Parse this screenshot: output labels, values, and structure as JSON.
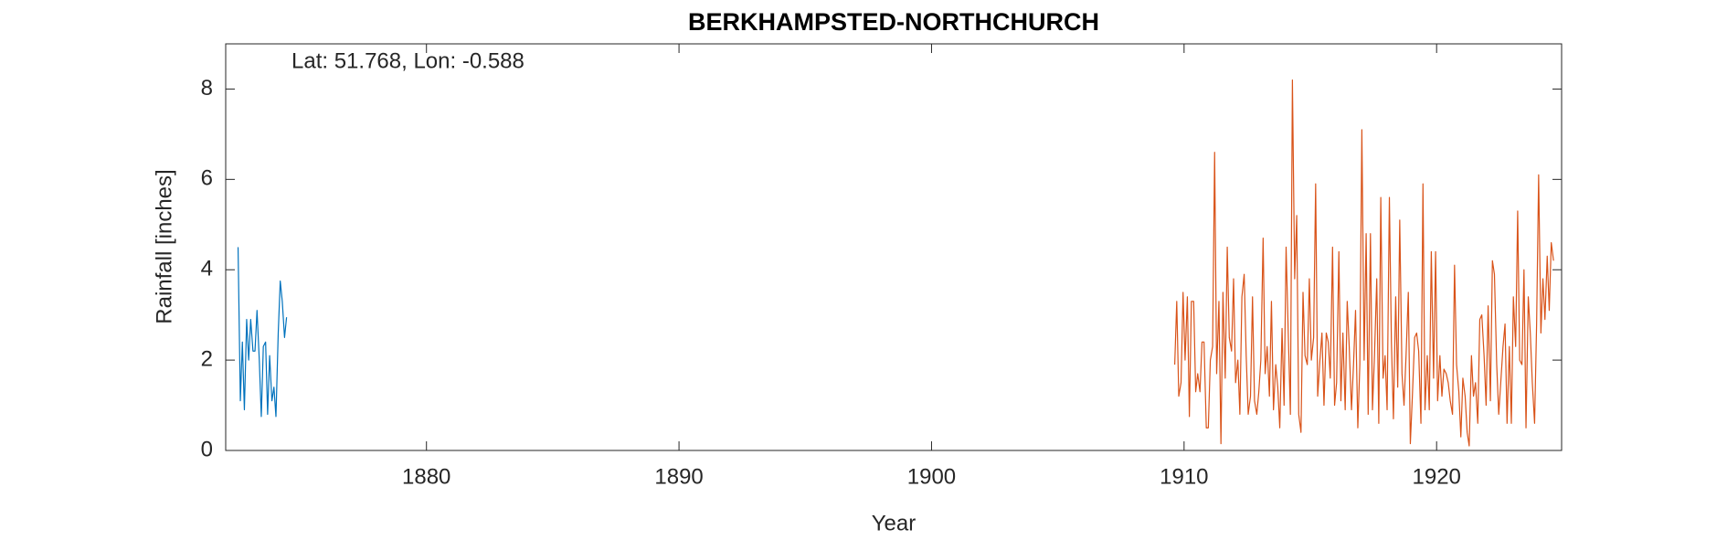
{
  "chart_data": {
    "type": "line",
    "title": "BERKHAMPSTED-NORTHCHURCH",
    "annotation": "Lat: 51.768, Lon: -0.588",
    "x_label": "Year",
    "y_label": "Rainfall [inches]",
    "xlim": [
      1872.05,
      1924.95
    ],
    "ylim": [
      0,
      9
    ],
    "xticks": [
      1880,
      1890,
      1900,
      1910,
      1920
    ],
    "yticks": [
      0,
      2,
      4,
      6,
      8
    ],
    "grid": false,
    "series": [
      {
        "color": "#0072bd",
        "x": [
          1872.54,
          1872.63,
          1872.71,
          1872.79,
          1872.88,
          1872.96,
          1873.04,
          1873.13,
          1873.21,
          1873.29,
          1873.38,
          1873.46,
          1873.54,
          1873.63,
          1873.71,
          1873.79,
          1873.88,
          1873.96,
          1874.04,
          1874.13,
          1874.21,
          1874.29,
          1874.38,
          1874.46
        ],
        "values": [
          4.5,
          1.1,
          2.4,
          0.9,
          2.9,
          2.0,
          2.9,
          2.2,
          2.2,
          3.1,
          2.0,
          0.75,
          2.3,
          2.4,
          0.8,
          2.1,
          1.1,
          1.4,
          0.75,
          2.6,
          3.75,
          3.3,
          2.5,
          2.95
        ]
      },
      {
        "color": "#d95319",
        "x": [
          1909.63,
          1909.71,
          1909.79,
          1909.88,
          1909.96,
          1910.04,
          1910.13,
          1910.21,
          1910.29,
          1910.38,
          1910.46,
          1910.54,
          1910.63,
          1910.71,
          1910.79,
          1910.88,
          1910.96,
          1911.04,
          1911.13,
          1911.21,
          1911.29,
          1911.38,
          1911.46,
          1911.54,
          1911.63,
          1911.71,
          1911.79,
          1911.88,
          1911.96,
          1912.04,
          1912.13,
          1912.21,
          1912.29,
          1912.38,
          1912.46,
          1912.54,
          1912.63,
          1912.71,
          1912.79,
          1912.88,
          1912.96,
          1913.04,
          1913.13,
          1913.21,
          1913.29,
          1913.38,
          1913.46,
          1913.54,
          1913.63,
          1913.71,
          1913.79,
          1913.88,
          1913.96,
          1914.04,
          1914.13,
          1914.21,
          1914.29,
          1914.38,
          1914.46,
          1914.54,
          1914.63,
          1914.71,
          1914.79,
          1914.88,
          1914.96,
          1915.04,
          1915.13,
          1915.21,
          1915.29,
          1915.38,
          1915.46,
          1915.54,
          1915.63,
          1915.71,
          1915.79,
          1915.88,
          1915.96,
          1916.04,
          1916.13,
          1916.21,
          1916.29,
          1916.38,
          1916.46,
          1916.54,
          1916.63,
          1916.71,
          1916.79,
          1916.88,
          1916.96,
          1917.04,
          1917.13,
          1917.21,
          1917.29,
          1917.38,
          1917.46,
          1917.54,
          1917.63,
          1917.71,
          1917.79,
          1917.88,
          1917.96,
          1918.04,
          1918.13,
          1918.21,
          1918.29,
          1918.38,
          1918.46,
          1918.54,
          1918.63,
          1918.71,
          1918.79,
          1918.88,
          1918.96,
          1919.04,
          1919.13,
          1919.21,
          1919.29,
          1919.38,
          1919.46,
          1919.54,
          1919.63,
          1919.71,
          1919.79,
          1919.88,
          1919.96,
          1920.04,
          1920.13,
          1920.21,
          1920.29,
          1920.38,
          1920.46,
          1920.54,
          1920.63,
          1920.71,
          1920.79,
          1920.88,
          1920.96,
          1921.04,
          1921.13,
          1921.21,
          1921.29,
          1921.38,
          1921.46,
          1921.54,
          1921.63,
          1921.71,
          1921.79,
          1921.88,
          1921.96,
          1922.04,
          1922.13,
          1922.21,
          1922.29,
          1922.38,
          1922.46,
          1922.54,
          1922.63,
          1922.71,
          1922.79,
          1922.88,
          1922.96,
          1923.04,
          1923.13,
          1923.21,
          1923.29,
          1923.38,
          1923.46,
          1923.54,
          1923.63,
          1923.71,
          1923.79,
          1923.88,
          1923.96,
          1924.04,
          1924.13,
          1924.21,
          1924.29,
          1924.38,
          1924.46,
          1924.54,
          1924.63
        ],
        "values": [
          1.9,
          3.3,
          1.2,
          1.5,
          3.5,
          2.0,
          3.4,
          0.75,
          3.3,
          3.3,
          1.3,
          1.7,
          1.3,
          2.4,
          2.4,
          0.5,
          0.5,
          2.0,
          2.3,
          6.6,
          1.7,
          3.3,
          0.15,
          3.5,
          1.6,
          4.5,
          2.5,
          2.2,
          3.8,
          1.5,
          2.0,
          0.8,
          3.4,
          3.9,
          2.1,
          0.8,
          1.2,
          3.4,
          1.1,
          0.8,
          1.3,
          2.0,
          4.7,
          1.7,
          2.3,
          1.2,
          3.3,
          0.9,
          1.9,
          1.4,
          0.5,
          2.7,
          1.0,
          4.5,
          2.5,
          0.8,
          8.2,
          3.8,
          5.2,
          0.8,
          0.4,
          3.5,
          2.1,
          1.9,
          3.8,
          2.0,
          2.5,
          5.9,
          1.2,
          2.0,
          2.6,
          1.0,
          2.6,
          2.4,
          1.6,
          4.5,
          1.0,
          1.5,
          4.4,
          1.1,
          2.6,
          0.9,
          3.3,
          2.3,
          0.9,
          1.9,
          3.1,
          0.5,
          1.9,
          7.1,
          2.0,
          4.8,
          0.8,
          4.8,
          0.9,
          2.1,
          3.8,
          0.6,
          5.6,
          1.6,
          2.1,
          0.9,
          5.6,
          2.4,
          0.7,
          3.4,
          1.4,
          5.1,
          1.7,
          1.0,
          2.1,
          3.5,
          0.15,
          1.2,
          2.5,
          2.6,
          2.2,
          0.6,
          5.9,
          0.9,
          2.1,
          0.9,
          4.4,
          1.6,
          4.4,
          1.1,
          2.1,
          1.2,
          1.8,
          1.7,
          1.5,
          1.1,
          0.8,
          4.1,
          1.9,
          1.3,
          0.3,
          1.6,
          1.2,
          0.4,
          0.1,
          2.1,
          1.2,
          1.5,
          0.6,
          2.9,
          3.0,
          2.1,
          1.0,
          3.2,
          1.1,
          4.2,
          3.9,
          1.9,
          0.8,
          1.5,
          2.3,
          2.8,
          0.6,
          2.3,
          0.6,
          3.4,
          2.3,
          5.3,
          2.0,
          1.9,
          4.0,
          0.5,
          3.4,
          2.6,
          1.5,
          0.6,
          2.8,
          6.1,
          2.6,
          3.8,
          2.9,
          4.3,
          3.1,
          4.6,
          4.2
        ]
      }
    ]
  }
}
